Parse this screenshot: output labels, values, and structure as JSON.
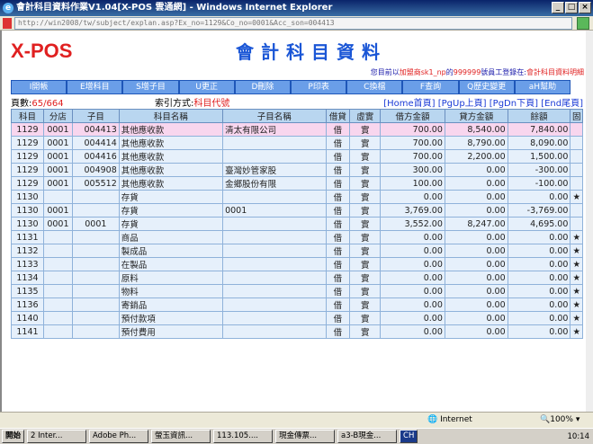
{
  "window": {
    "title": "會計科目資料作業V1.04[X-POS 雲通網] - Windows Internet Explorer",
    "address": "http://win2008/tw/subject/explan.asp?Ex_no=1129&Co_no=0001&Acc_son=004413"
  },
  "header": {
    "logo": "X-POS",
    "title": "會計科目資料",
    "info_prefix": "您目前以",
    "info_user": "加盟商sk1_np",
    "info_mid": "的",
    "info_emp": "999999",
    "info_mid2": "號員工登錄在:",
    "info_page": "會計科目資料明細"
  },
  "toolbar": [
    "I開帳",
    "E增科目",
    "S增子目",
    "U更正",
    "D刪除",
    "P印表",
    "C換檔",
    "F查詢",
    "Q歷史變更",
    "aH幫助"
  ],
  "pager": {
    "label": "頁數:",
    "current": "65",
    "total": "/664",
    "index_label": "索引方式:",
    "index_value": "科目代號",
    "nav": [
      "[Home首頁]",
      "[PgUp上頁]",
      "[PgDn下頁]",
      "[End尾頁]"
    ]
  },
  "table": {
    "headers": [
      "科目",
      "分店",
      "子目",
      "科目名稱",
      "子目名稱",
      "借貸",
      "虛實",
      "借方金額",
      "貸方金額",
      "餘額",
      "固"
    ],
    "rows": [
      [
        "1129",
        "0001",
        "004413",
        "其他應收款",
        "清太有限公司",
        "借",
        "實",
        "700.00",
        "8,540.00",
        "7,840.00",
        ""
      ],
      [
        "1129",
        "0001",
        "004414",
        "其他應收款",
        "",
        "借",
        "實",
        "700.00",
        "8,790.00",
        "8,090.00",
        ""
      ],
      [
        "1129",
        "0001",
        "004416",
        "其他應收款",
        "",
        "借",
        "實",
        "700.00",
        "2,200.00",
        "1,500.00",
        ""
      ],
      [
        "1129",
        "0001",
        "004908",
        "其他應收款",
        "臺灣妙管家股",
        "借",
        "實",
        "300.00",
        "0.00",
        "-300.00",
        ""
      ],
      [
        "1129",
        "0001",
        "005512",
        "其他應收款",
        "金鄉股份有限",
        "借",
        "實",
        "100.00",
        "0.00",
        "-100.00",
        ""
      ],
      [
        "1130",
        "",
        "",
        "存貨",
        "",
        "借",
        "實",
        "0.00",
        "0.00",
        "0.00",
        "★"
      ],
      [
        "1130",
        "0001",
        "",
        "存貨",
        "0001",
        "借",
        "實",
        "3,769.00",
        "0.00",
        "-3,769.00",
        ""
      ],
      [
        "1130",
        "0001",
        "0001",
        "存貨",
        "",
        "借",
        "實",
        "3,552.00",
        "8,247.00",
        "4,695.00",
        ""
      ],
      [
        "1131",
        "",
        "",
        "商品",
        "",
        "借",
        "實",
        "0.00",
        "0.00",
        "0.00",
        "★"
      ],
      [
        "1132",
        "",
        "",
        "製成品",
        "",
        "借",
        "實",
        "0.00",
        "0.00",
        "0.00",
        "★"
      ],
      [
        "1133",
        "",
        "",
        "在製品",
        "",
        "借",
        "實",
        "0.00",
        "0.00",
        "0.00",
        "★"
      ],
      [
        "1134",
        "",
        "",
        "原料",
        "",
        "借",
        "實",
        "0.00",
        "0.00",
        "0.00",
        "★"
      ],
      [
        "1135",
        "",
        "",
        "物料",
        "",
        "借",
        "實",
        "0.00",
        "0.00",
        "0.00",
        "★"
      ],
      [
        "1136",
        "",
        "",
        "寄銷品",
        "",
        "借",
        "實",
        "0.00",
        "0.00",
        "0.00",
        "★"
      ],
      [
        "1140",
        "",
        "",
        "預付款項",
        "",
        "借",
        "實",
        "0.00",
        "0.00",
        "0.00",
        "★"
      ],
      [
        "1141",
        "",
        "",
        "預付費用",
        "",
        "借",
        "實",
        "0.00",
        "0.00",
        "0.00",
        "★"
      ]
    ]
  },
  "status": {
    "zone": "Internet",
    "zoom": "100%"
  },
  "taskbar": {
    "start": "開始",
    "tasks": [
      "2 Inter...",
      "Adobe Ph...",
      "螢玉資訊...",
      "113.105....",
      "現金傳票...",
      "a3-B現金..."
    ],
    "ime": "CH",
    "clock": "10:14"
  }
}
